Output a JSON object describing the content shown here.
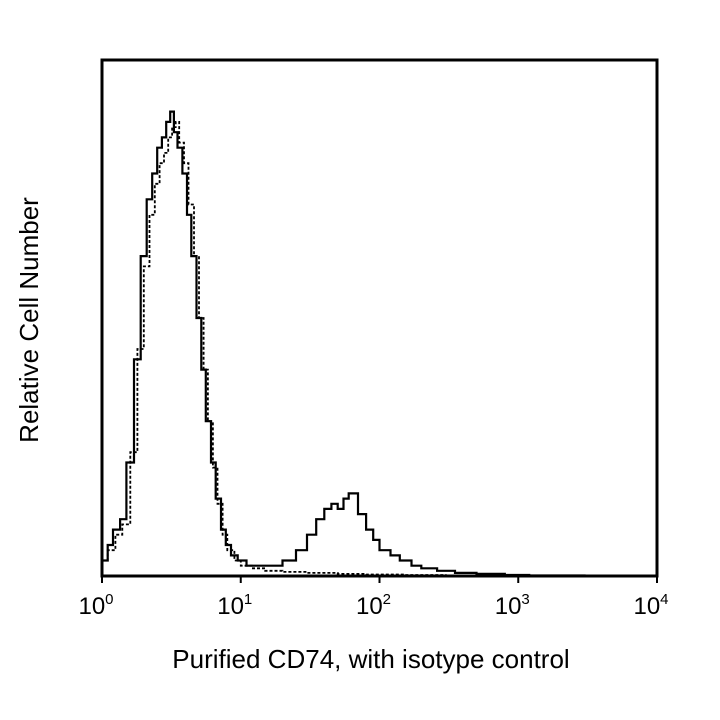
{
  "chart_data": {
    "type": "line",
    "subtype": "flow-cytometry-histogram",
    "xlabel": "Purified CD74, with isotype control",
    "ylabel": "Relative Cell Number",
    "xscale": "log",
    "xlim": [
      1,
      10000
    ],
    "ylim": [
      0,
      100
    ],
    "grid": false,
    "x_ticks": [
      {
        "base": "10",
        "exp": "0",
        "value": 1
      },
      {
        "base": "10",
        "exp": "1",
        "value": 10
      },
      {
        "base": "10",
        "exp": "2",
        "value": 100
      },
      {
        "base": "10",
        "exp": "3",
        "value": 1000
      },
      {
        "base": "10",
        "exp": "4",
        "value": 10000
      }
    ],
    "series": [
      {
        "style": "solid",
        "color": "#000000",
        "points": [
          [
            1.0,
            3
          ],
          [
            1.1,
            6
          ],
          [
            1.2,
            9
          ],
          [
            1.35,
            11
          ],
          [
            1.5,
            22
          ],
          [
            1.7,
            42
          ],
          [
            1.9,
            62
          ],
          [
            2.1,
            73
          ],
          [
            2.3,
            78
          ],
          [
            2.5,
            83
          ],
          [
            2.7,
            85
          ],
          [
            2.9,
            88
          ],
          [
            3.1,
            90
          ],
          [
            3.3,
            86
          ],
          [
            3.5,
            83
          ],
          [
            3.8,
            78
          ],
          [
            4.1,
            70
          ],
          [
            4.4,
            62
          ],
          [
            4.8,
            50
          ],
          [
            5.2,
            40
          ],
          [
            5.6,
            30
          ],
          [
            6.1,
            22
          ],
          [
            6.6,
            15
          ],
          [
            7.2,
            9
          ],
          [
            7.8,
            6
          ],
          [
            8.5,
            4
          ],
          [
            9.5,
            3
          ],
          [
            11,
            2
          ],
          [
            13,
            2
          ],
          [
            16,
            2
          ],
          [
            20,
            3
          ],
          [
            25,
            5
          ],
          [
            30,
            8
          ],
          [
            35,
            11
          ],
          [
            40,
            13
          ],
          [
            45,
            14
          ],
          [
            50,
            13
          ],
          [
            55,
            15
          ],
          [
            60,
            16
          ],
          [
            70,
            12
          ],
          [
            80,
            9
          ],
          [
            90,
            7
          ],
          [
            100,
            5
          ],
          [
            120,
            4
          ],
          [
            140,
            3
          ],
          [
            170,
            2
          ],
          [
            200,
            1.5
          ],
          [
            260,
            1
          ],
          [
            350,
            0.6
          ],
          [
            500,
            0.4
          ],
          [
            800,
            0.2
          ],
          [
            1200,
            0.1
          ],
          [
            3000,
            0
          ],
          [
            10000,
            0
          ]
        ]
      },
      {
        "style": "dashed",
        "color": "#000000",
        "points": [
          [
            1.0,
            3
          ],
          [
            1.1,
            5
          ],
          [
            1.25,
            8
          ],
          [
            1.4,
            10
          ],
          [
            1.6,
            24
          ],
          [
            1.8,
            44
          ],
          [
            2.0,
            60
          ],
          [
            2.2,
            70
          ],
          [
            2.4,
            76
          ],
          [
            2.6,
            80
          ],
          [
            2.8,
            82
          ],
          [
            3.0,
            85
          ],
          [
            3.2,
            87
          ],
          [
            3.4,
            88
          ],
          [
            3.6,
            84
          ],
          [
            3.9,
            80
          ],
          [
            4.2,
            72
          ],
          [
            4.6,
            62
          ],
          [
            5.0,
            50
          ],
          [
            5.4,
            40
          ],
          [
            5.8,
            30
          ],
          [
            6.3,
            21
          ],
          [
            6.8,
            14
          ],
          [
            7.4,
            8
          ],
          [
            8.0,
            5
          ],
          [
            9.0,
            3
          ],
          [
            10,
            2
          ],
          [
            12,
            1.5
          ],
          [
            15,
            1
          ],
          [
            20,
            0.8
          ],
          [
            30,
            0.6
          ],
          [
            50,
            0.4
          ],
          [
            80,
            0.3
          ],
          [
            150,
            0.2
          ],
          [
            300,
            0.1
          ],
          [
            10000,
            0
          ]
        ]
      }
    ]
  }
}
